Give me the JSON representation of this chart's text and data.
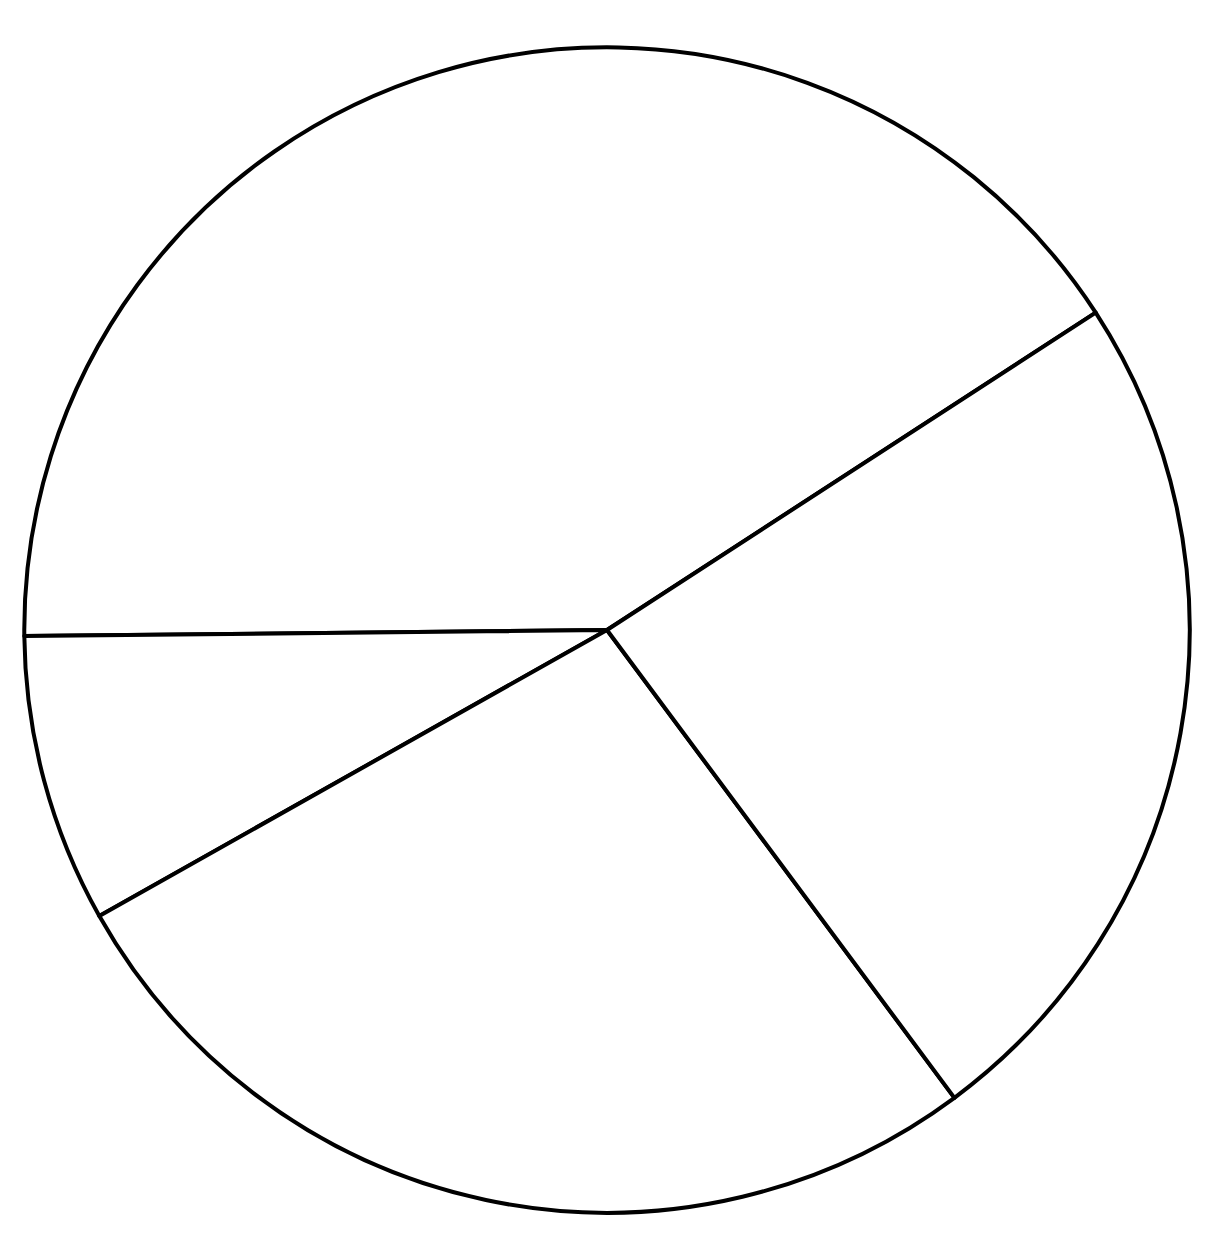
{
  "chart_data": {
    "type": "pie",
    "categories": [
      null,
      null,
      null,
      null
    ],
    "values": [
      41,
      8,
      27,
      24
    ],
    "colors": [
      "#ffffff",
      "#ffffff",
      "#ffffff",
      "#ffffff"
    ]
  }
}
